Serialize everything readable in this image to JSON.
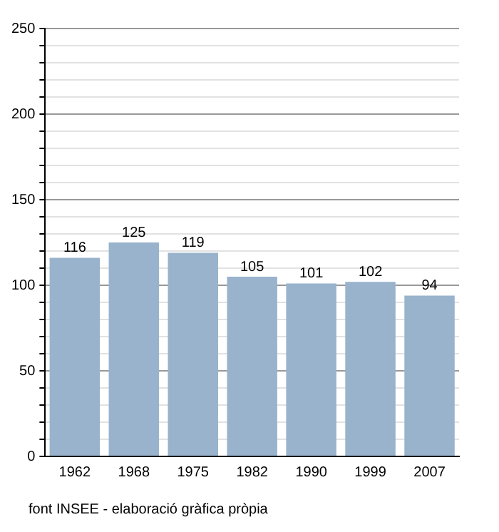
{
  "chart_data": {
    "type": "bar",
    "categories": [
      "1962",
      "1968",
      "1975",
      "1982",
      "1990",
      "1999",
      "2007"
    ],
    "values": [
      116,
      125,
      119,
      105,
      101,
      102,
      94
    ],
    "color": "#99b3cc",
    "data_labels": true,
    "grid": "y",
    "legend": false,
    "ylim": [
      0,
      250
    ],
    "yticks": [
      0,
      {
        "value": 10,
        "label": null
      },
      {
        "value": 20,
        "label": null
      },
      {
        "value": 30,
        "label": null
      },
      {
        "value": 40,
        "label": null
      },
      50,
      {
        "value": 60,
        "label": null
      },
      {
        "value": 70,
        "label": null
      },
      {
        "value": 80,
        "label": null
      },
      {
        "value": 90,
        "label": null
      },
      100,
      {
        "value": 110,
        "label": null
      },
      {
        "value": 120,
        "label": null
      },
      {
        "value": 130,
        "label": null
      },
      {
        "value": 140,
        "label": null
      },
      150,
      {
        "value": 160,
        "label": null
      },
      {
        "value": 170,
        "label": null
      },
      {
        "value": 180,
        "label": null
      },
      {
        "value": 190,
        "label": null
      },
      200,
      {
        "value": 210,
        "label": null
      },
      {
        "value": 220,
        "label": null
      },
      {
        "value": 230,
        "label": null
      },
      {
        "value": 240,
        "label": null
      },
      250
    ],
    "annotations": [
      "font INSEE - elaboració gràfica pròpia"
    ]
  }
}
